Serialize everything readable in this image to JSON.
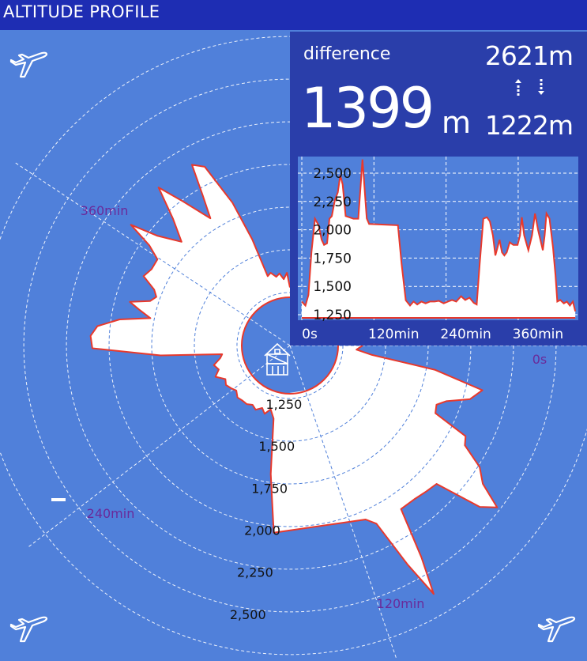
{
  "header": {
    "title": "ALTITUDE PROFILE"
  },
  "summary": {
    "difference_label": "difference",
    "difference_value": "1399",
    "difference_unit": "m",
    "max_altitude": "2621m",
    "min_altitude": "1222m",
    "up_icon": "dotted-arrow-up-icon",
    "down_icon": "dotted-arrow-down-icon"
  },
  "icons": {
    "corner": "airplane-icon",
    "center": "house-icon"
  },
  "colors": {
    "background": "#5080da",
    "header": "#1e2db3",
    "panel": "#2a3eaa",
    "fill": "#ffffff",
    "line": "#e8392c",
    "time_label": "#6a2a9a"
  },
  "chart_data": [
    {
      "type": "area",
      "subtype": "polar",
      "x_unit": "min",
      "y_unit": "m",
      "y_ticks": [
        "1,250",
        "1,500",
        "1,750",
        "2,000",
        "2,250",
        "2,500"
      ],
      "y_tick_values": [
        1250,
        1500,
        1750,
        2000,
        2250,
        2500
      ],
      "x_ticks": [
        "0s",
        "120min",
        "240min",
        "360min"
      ],
      "x_tick_values": [
        0,
        120,
        240,
        360
      ],
      "xlim": [
        0,
        455
      ],
      "ylim": [
        1222,
        2621
      ],
      "grid": true
    },
    {
      "type": "area",
      "x_ticks": [
        "0s",
        "120min",
        "240min",
        "360min"
      ],
      "x_tick_values": [
        0,
        120,
        240,
        360
      ],
      "y_ticks": [
        "1,250",
        "1,500",
        "1,750",
        "2,000",
        "2,250",
        "2,500"
      ],
      "y_tick_values": [
        1250,
        1500,
        1750,
        2000,
        2250,
        2500
      ],
      "xlim": [
        0,
        455
      ],
      "ylim": [
        1222,
        2621
      ],
      "grid": true
    }
  ],
  "profile": {
    "t": [
      0,
      6,
      11,
      16,
      22,
      28,
      33,
      37,
      42,
      46,
      50,
      55,
      60,
      64,
      68,
      73,
      79,
      86,
      94,
      98,
      101,
      104,
      108,
      112,
      160,
      166,
      173,
      180,
      186,
      192,
      199,
      206,
      213,
      221,
      228,
      236,
      243,
      250,
      257,
      265,
      272,
      279,
      286,
      291,
      296,
      302,
      308,
      313,
      318,
      322,
      326,
      329,
      333,
      337,
      341,
      346,
      352,
      359,
      363,
      366,
      370,
      377,
      383,
      388,
      393,
      401,
      404,
      407,
      412,
      418,
      422,
      425,
      430,
      436,
      441,
      446,
      451,
      455
    ],
    "alt": [
      1366,
      1330,
      1424,
      1800,
      2098,
      2040,
      1912,
      1866,
      1880,
      2098,
      2120,
      2260,
      2330,
      2481,
      2400,
      2121,
      2110,
      2098,
      2098,
      2400,
      2621,
      2400,
      2100,
      2051,
      2040,
      1700,
      1378,
      1330,
      1366,
      1340,
      1366,
      1350,
      1366,
      1366,
      1372,
      1350,
      1366,
      1380,
      1366,
      1413,
      1380,
      1400,
      1355,
      1340,
      1700,
      2098,
      2110,
      2074,
      1950,
      1773,
      1850,
      1912,
      1800,
      1773,
      1800,
      1889,
      1866,
      1866,
      1950,
      2110,
      1950,
      1819,
      1950,
      2144,
      2000,
      1819,
      1950,
      2144,
      2100,
      1842,
      1600,
      1366,
      1380,
      1350,
      1366,
      1330,
      1366,
      1280
    ]
  }
}
